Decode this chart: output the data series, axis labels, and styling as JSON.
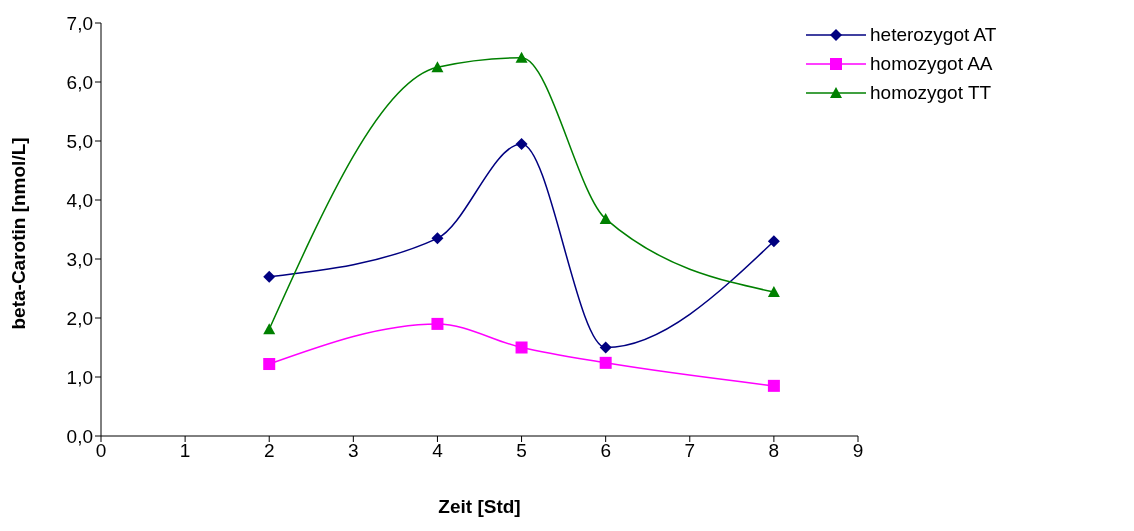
{
  "chart_data": {
    "type": "line",
    "xlabel": "Zeit [Std]",
    "ylabel": "beta-Carotin [nmol/L]",
    "x": [
      2,
      4,
      5,
      6,
      8
    ],
    "series": [
      {
        "name": "heterozygot AT",
        "color": "#000080",
        "marker": "diamond",
        "values": [
          2.7,
          3.35,
          4.95,
          1.5,
          3.3
        ]
      },
      {
        "name": "homozygot AA",
        "color": "#ff00ff",
        "marker": "square",
        "values": [
          1.22,
          1.9,
          1.5,
          1.24,
          0.85
        ]
      },
      {
        "name": "homozygot TT",
        "color": "#008000",
        "marker": "triangle",
        "values": [
          1.81,
          6.25,
          6.41,
          3.68,
          2.44
        ]
      }
    ],
    "xlim": [
      0,
      9
    ],
    "xticks": [
      0,
      1,
      2,
      3,
      4,
      5,
      6,
      7,
      8,
      9
    ],
    "ylim": [
      0,
      7
    ],
    "yticks": [
      {
        "value": 0,
        "label": "0,0"
      },
      {
        "value": 1,
        "label": "1,0"
      },
      {
        "value": 2,
        "label": "2,0"
      },
      {
        "value": 3,
        "label": "3,0"
      },
      {
        "value": 4,
        "label": "4,0"
      },
      {
        "value": 5,
        "label": "5,0"
      },
      {
        "value": 6,
        "label": "6,0"
      },
      {
        "value": 7,
        "label": "7,0"
      }
    ],
    "grid": false,
    "legend": "top right",
    "line_style": "solid"
  }
}
